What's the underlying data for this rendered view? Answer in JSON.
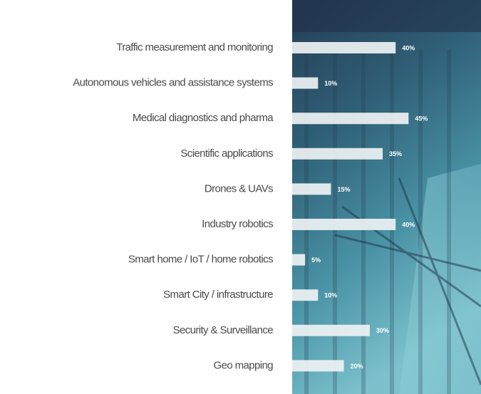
{
  "chart_data": {
    "type": "bar",
    "orientation": "horizontal",
    "categories": [
      "Traffic measurement and monitoring",
      "Autonomous vehicles and assistance systems",
      "Medical diagnostics and pharma",
      "Scientific applications",
      "Drones & UAVs",
      "Industry robotics",
      "Smart home / IoT / home robotics",
      "Smart City / infrastructure",
      "Security & Surveillance",
      "Geo mapping"
    ],
    "values": [
      40,
      10,
      45,
      35,
      15,
      40,
      5,
      10,
      30,
      20
    ],
    "value_labels": [
      "40%",
      "10%",
      "45%",
      "35%",
      "15%",
      "40%",
      "5%",
      "10%",
      "30%",
      "20%"
    ],
    "color": "#eef2f3"
  }
}
